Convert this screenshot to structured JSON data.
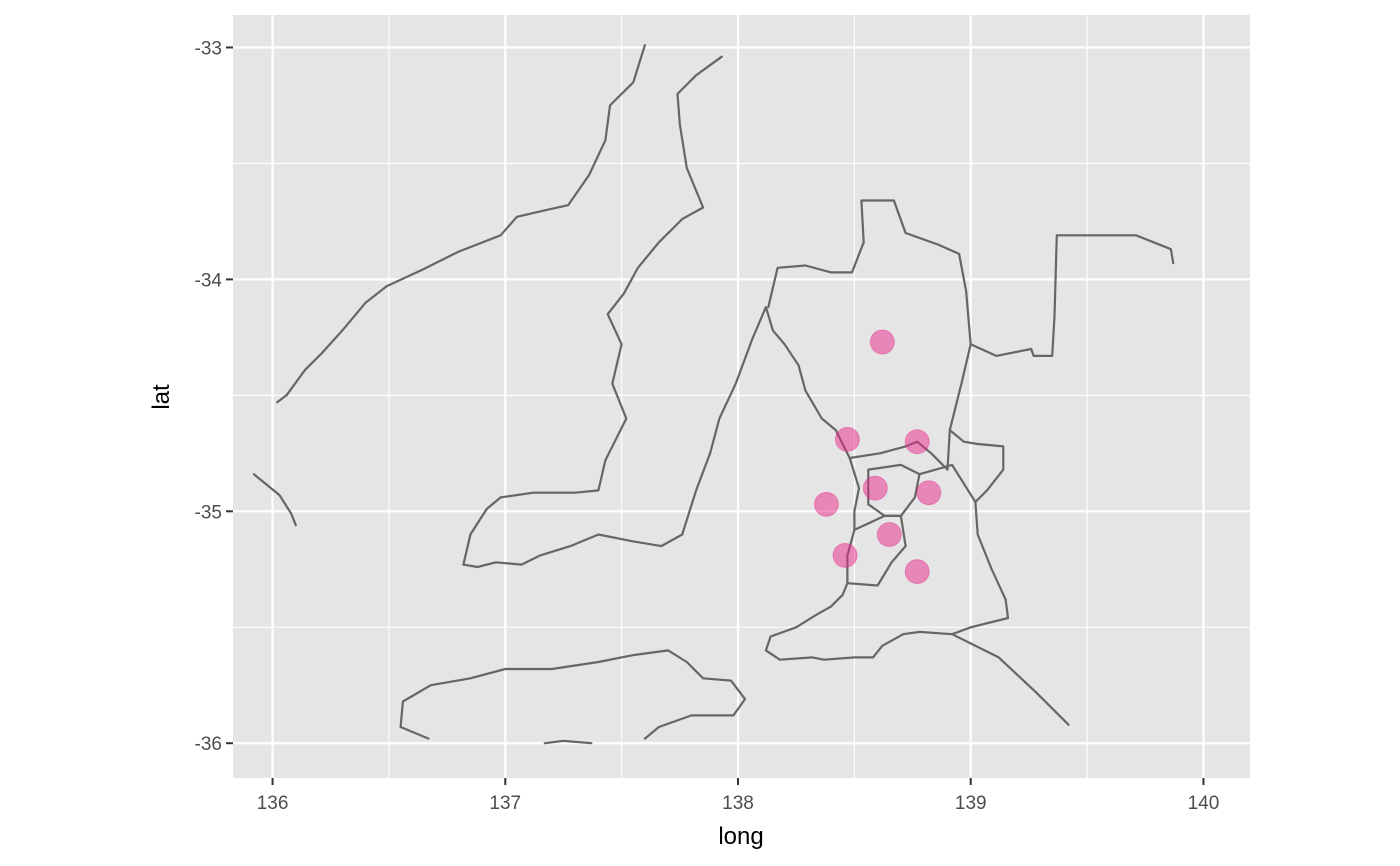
{
  "chart_data": {
    "type": "scatter",
    "title": "",
    "xlabel": "long",
    "ylabel": "lat",
    "xlim": [
      135.83,
      140.2
    ],
    "ylim": [
      -36.15,
      -32.86
    ],
    "x_ticks": [
      136,
      137,
      138,
      139,
      140
    ],
    "x_tick_labels": [
      "136",
      "137",
      "138",
      "139",
      "140"
    ],
    "y_ticks": [
      -33,
      -34,
      -35,
      -36
    ],
    "y_tick_labels": [
      "-33",
      "-34",
      "-35",
      "-36"
    ],
    "grid": true,
    "legend": "none",
    "colors": {
      "panel_background": "#e5e5e5",
      "grid": "#ffffff",
      "outline": "#666666",
      "point_fill": "#e7298a",
      "tick_text": "#4d4d4d"
    },
    "points": [
      {
        "x": 138.62,
        "y": -34.27
      },
      {
        "x": 138.47,
        "y": -34.69
      },
      {
        "x": 138.77,
        "y": -34.7
      },
      {
        "x": 138.59,
        "y": -34.9
      },
      {
        "x": 138.82,
        "y": -34.92
      },
      {
        "x": 138.38,
        "y": -34.97
      },
      {
        "x": 138.65,
        "y": -35.1
      },
      {
        "x": 138.46,
        "y": -35.19
      },
      {
        "x": 138.77,
        "y": -35.26
      }
    ],
    "outlines": [
      {
        "name": "eyre-peninsula-coast",
        "points": [
          [
            137.6,
            -32.99
          ],
          [
            137.55,
            -33.15
          ],
          [
            137.45,
            -33.25
          ],
          [
            137.43,
            -33.4
          ],
          [
            137.36,
            -33.55
          ],
          [
            137.27,
            -33.68
          ],
          [
            137.18,
            -33.7
          ],
          [
            137.05,
            -33.73
          ],
          [
            136.98,
            -33.81
          ],
          [
            136.8,
            -33.88
          ],
          [
            136.64,
            -33.96
          ],
          [
            136.49,
            -34.03
          ],
          [
            136.4,
            -34.1
          ],
          [
            136.3,
            -34.22
          ],
          [
            136.21,
            -34.32
          ],
          [
            136.14,
            -34.39
          ],
          [
            136.06,
            -34.5
          ],
          [
            136.02,
            -34.53
          ]
        ]
      },
      {
        "name": "wedge-island",
        "points": [
          [
            135.92,
            -34.84
          ],
          [
            136.03,
            -34.93
          ],
          [
            136.08,
            -35.01
          ],
          [
            136.1,
            -35.06
          ]
        ]
      },
      {
        "name": "yorke-peninsula-east-coast",
        "points": [
          [
            137.93,
            -33.04
          ],
          [
            137.82,
            -33.12
          ],
          [
            137.74,
            -33.2
          ],
          [
            137.75,
            -33.33
          ],
          [
            137.78,
            -33.52
          ],
          [
            137.85,
            -33.69
          ],
          [
            137.76,
            -33.74
          ],
          [
            137.66,
            -33.84
          ],
          [
            137.57,
            -33.95
          ],
          [
            137.51,
            -34.06
          ],
          [
            137.44,
            -34.15
          ],
          [
            137.5,
            -34.28
          ],
          [
            137.46,
            -34.45
          ],
          [
            137.52,
            -34.6
          ],
          [
            137.43,
            -34.78
          ],
          [
            137.4,
            -34.91
          ],
          [
            137.3,
            -34.92
          ],
          [
            137.12,
            -34.92
          ],
          [
            136.98,
            -34.94
          ],
          [
            136.92,
            -34.99
          ],
          [
            136.85,
            -35.1
          ],
          [
            136.82,
            -35.23
          ]
        ]
      },
      {
        "name": "yorke-peninsula-south-coast",
        "points": [
          [
            136.82,
            -35.23
          ],
          [
            136.88,
            -35.24
          ],
          [
            136.96,
            -35.22
          ],
          [
            137.07,
            -35.23
          ],
          [
            137.15,
            -35.19
          ],
          [
            137.28,
            -35.15
          ],
          [
            137.4,
            -35.1
          ],
          [
            137.55,
            -35.13
          ],
          [
            137.67,
            -35.15
          ],
          [
            137.76,
            -35.1
          ]
        ]
      },
      {
        "name": "yorke-peninsula-west-coast",
        "points": [
          [
            137.76,
            -35.1
          ],
          [
            137.82,
            -34.91
          ],
          [
            137.88,
            -34.75
          ],
          [
            137.92,
            -34.6
          ],
          [
            137.99,
            -34.45
          ],
          [
            138.06,
            -34.26
          ],
          [
            138.12,
            -34.12
          ]
        ]
      },
      {
        "name": "kangaroo-island-north-coast",
        "points": [
          [
            136.67,
            -35.98
          ],
          [
            136.55,
            -35.93
          ],
          [
            136.56,
            -35.82
          ],
          [
            136.68,
            -35.75
          ],
          [
            136.85,
            -35.72
          ],
          [
            137.0,
            -35.68
          ],
          [
            137.2,
            -35.68
          ],
          [
            137.4,
            -35.65
          ],
          [
            137.55,
            -35.62
          ],
          [
            137.7,
            -35.6
          ],
          [
            137.78,
            -35.65
          ],
          [
            137.85,
            -35.72
          ],
          [
            137.97,
            -35.73
          ],
          [
            138.03,
            -35.81
          ],
          [
            137.98,
            -35.88
          ],
          [
            137.8,
            -35.88
          ],
          [
            137.66,
            -35.93
          ],
          [
            137.6,
            -35.98
          ]
        ]
      },
      {
        "name": "kangaroo-island-south-coast",
        "points": [
          [
            137.17,
            -36.0
          ],
          [
            137.25,
            -35.99
          ],
          [
            137.37,
            -36.0
          ]
        ]
      },
      {
        "name": "greater-adelaide-boundary",
        "points": [
          [
            138.13,
            -34.12
          ],
          [
            138.17,
            -33.95
          ],
          [
            138.29,
            -33.94
          ],
          [
            138.4,
            -33.97
          ],
          [
            138.49,
            -33.97
          ],
          [
            138.54,
            -33.84
          ],
          [
            138.53,
            -33.66
          ],
          [
            138.67,
            -33.66
          ],
          [
            138.72,
            -33.8
          ],
          [
            138.86,
            -33.85
          ],
          [
            138.95,
            -33.89
          ],
          [
            138.98,
            -34.05
          ],
          [
            139.0,
            -34.28
          ],
          [
            139.11,
            -34.33
          ],
          [
            139.26,
            -34.3
          ],
          [
            139.27,
            -34.33
          ],
          [
            139.35,
            -34.33
          ],
          [
            139.36,
            -34.16
          ],
          [
            139.37,
            -33.81
          ],
          [
            139.71,
            -33.81
          ],
          [
            139.86,
            -33.87
          ],
          [
            139.87,
            -33.93
          ]
        ]
      },
      {
        "name": "greater-adelaide-east-edge",
        "points": [
          [
            139.0,
            -34.28
          ],
          [
            138.96,
            -34.45
          ],
          [
            138.91,
            -34.65
          ],
          [
            138.97,
            -34.7
          ],
          [
            139.03,
            -34.71
          ],
          [
            139.14,
            -34.72
          ],
          [
            139.14,
            -34.82
          ],
          [
            139.07,
            -34.91
          ],
          [
            139.02,
            -34.96
          ],
          [
            139.03,
            -35.1
          ],
          [
            139.09,
            -35.25
          ],
          [
            139.15,
            -35.38
          ]
        ]
      },
      {
        "name": "greater-adelaide-south-edge",
        "points": [
          [
            139.15,
            -35.38
          ],
          [
            139.16,
            -35.46
          ],
          [
            139.0,
            -35.5
          ],
          [
            138.92,
            -35.53
          ],
          [
            138.78,
            -35.52
          ],
          [
            138.71,
            -35.53
          ],
          [
            138.62,
            -35.58
          ],
          [
            138.58,
            -35.63
          ],
          [
            138.5,
            -35.63
          ],
          [
            138.37,
            -35.64
          ],
          [
            138.32,
            -35.63
          ],
          [
            138.18,
            -35.64
          ],
          [
            138.12,
            -35.6
          ],
          [
            138.14,
            -35.54
          ],
          [
            138.25,
            -35.5
          ],
          [
            138.33,
            -35.45
          ],
          [
            138.4,
            -35.41
          ],
          [
            138.45,
            -35.36
          ],
          [
            138.47,
            -35.31
          ],
          [
            138.47,
            -35.19
          ],
          [
            138.5,
            -35.08
          ],
          [
            138.5,
            -35.0
          ],
          [
            138.52,
            -34.9
          ],
          [
            138.48,
            -34.77
          ],
          [
            138.42,
            -34.65
          ],
          [
            138.36,
            -34.6
          ],
          [
            138.29,
            -34.48
          ],
          [
            138.26,
            -34.37
          ],
          [
            138.2,
            -34.28
          ],
          [
            138.15,
            -34.22
          ],
          [
            138.12,
            -34.12
          ]
        ]
      },
      {
        "name": "north-adelaide-council-boundary",
        "points": [
          [
            138.48,
            -34.77
          ],
          [
            138.61,
            -34.75
          ],
          [
            138.72,
            -34.72
          ],
          [
            138.77,
            -34.7
          ],
          [
            138.83,
            -34.75
          ],
          [
            138.9,
            -34.82
          ],
          [
            138.91,
            -34.65
          ]
        ]
      },
      {
        "name": "inner-adelaide-council-boundary",
        "points": [
          [
            138.56,
            -34.97
          ],
          [
            138.56,
            -34.82
          ],
          [
            138.7,
            -34.8
          ],
          [
            138.78,
            -34.84
          ],
          [
            138.76,
            -34.94
          ],
          [
            138.7,
            -35.02
          ],
          [
            138.63,
            -35.02
          ],
          [
            138.56,
            -34.97
          ]
        ]
      },
      {
        "name": "southern-adelaide-council-boundary",
        "points": [
          [
            138.5,
            -35.08
          ],
          [
            138.63,
            -35.02
          ],
          [
            138.7,
            -35.02
          ],
          [
            138.72,
            -35.15
          ],
          [
            138.66,
            -35.22
          ],
          [
            138.6,
            -35.32
          ],
          [
            138.47,
            -35.31
          ]
        ]
      },
      {
        "name": "eastern-adelaide-council-boundary",
        "points": [
          [
            138.78,
            -34.84
          ],
          [
            138.92,
            -34.8
          ],
          [
            139.02,
            -34.96
          ]
        ]
      },
      {
        "name": "murray-bridge-boundary",
        "points": [
          [
            138.92,
            -35.53
          ],
          [
            139.12,
            -35.63
          ],
          [
            139.28,
            -35.78
          ],
          [
            139.42,
            -35.92
          ]
        ]
      }
    ]
  }
}
